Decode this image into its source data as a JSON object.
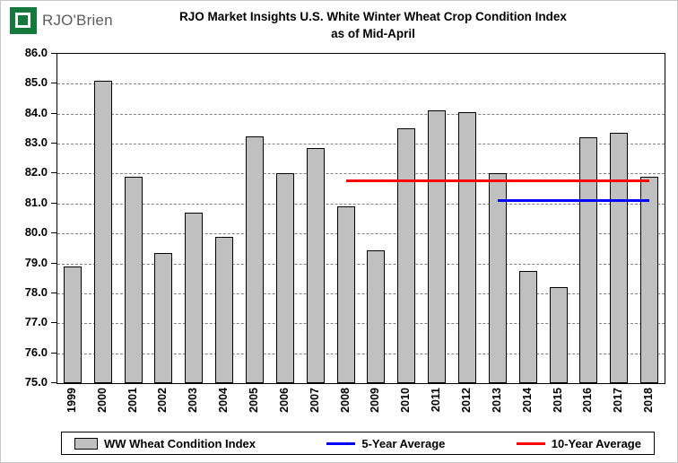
{
  "logo": {
    "text": "RJO'Brien"
  },
  "chart_data": {
    "type": "bar",
    "title_line1": "RJO Market Insights U.S. White Winter Wheat Crop Condition Index",
    "title_line2": "as of Mid-April",
    "categories": [
      "1999",
      "2000",
      "2001",
      "2002",
      "2003",
      "2004",
      "2005",
      "2006",
      "2007",
      "2008",
      "2009",
      "2010",
      "2011",
      "2012",
      "2013",
      "2014",
      "2015",
      "2016",
      "2017",
      "2018"
    ],
    "values": [
      78.9,
      85.1,
      81.9,
      79.35,
      80.7,
      79.9,
      83.25,
      82.0,
      82.85,
      80.9,
      79.45,
      83.5,
      84.1,
      84.05,
      82.0,
      78.75,
      78.2,
      83.2,
      83.35,
      81.9
    ],
    "ylim": [
      75.0,
      86.0
    ],
    "y_ticks": [
      "86.0",
      "85.0",
      "84.0",
      "83.0",
      "82.0",
      "81.0",
      "80.0",
      "79.0",
      "78.0",
      "77.0",
      "76.0",
      "75.0"
    ],
    "grid": true,
    "bar_color": "#C0C0C0",
    "bar_border": "#000000",
    "lines": [
      {
        "name": "5-Year Average",
        "value": 81.1,
        "from": "2013",
        "to": "2018",
        "color": "#0000FF"
      },
      {
        "name": "10-Year Average",
        "value": 81.75,
        "from": "2008",
        "to": "2018",
        "color": "#FF0000"
      }
    ],
    "legend": [
      {
        "label": "WW Wheat Condition Index",
        "swatch": "bar",
        "color": "#C0C0C0"
      },
      {
        "label": "5-Year Average",
        "swatch": "line",
        "color": "#0000FF"
      },
      {
        "label": "10-Year Average",
        "swatch": "line",
        "color": "#FF0000"
      }
    ],
    "legend_position": "bottom"
  }
}
